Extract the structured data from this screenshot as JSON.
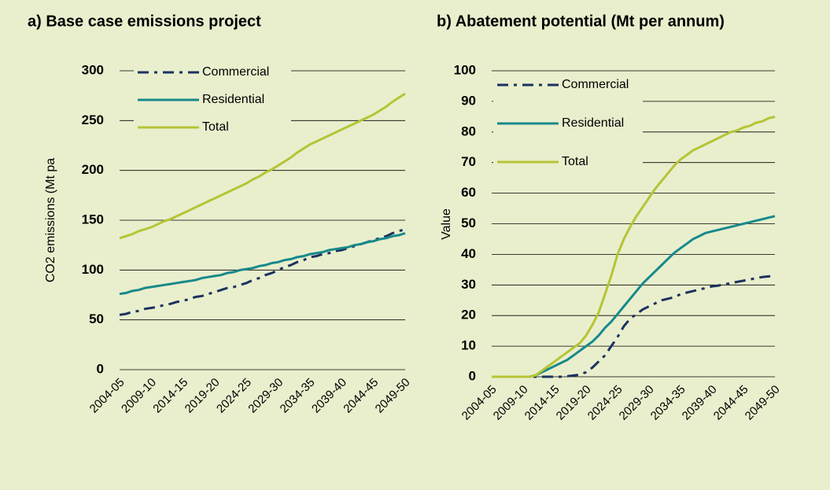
{
  "chart_data": [
    {
      "type": "line",
      "title": "a) Base case emissions project",
      "y_label": "CO2 emissions (Mt pa",
      "categories": [
        "2004-05",
        null,
        null,
        null,
        null,
        "2009-10",
        null,
        null,
        null,
        null,
        "2014-15",
        null,
        null,
        null,
        null,
        "2019-20",
        null,
        null,
        null,
        null,
        "2024-25",
        null,
        null,
        null,
        null,
        "2029-30",
        null,
        null,
        null,
        null,
        "2034-35",
        null,
        null,
        null,
        null,
        "2039-40",
        null,
        null,
        null,
        null,
        "2044-45",
        null,
        null,
        null,
        null,
        "2049-50"
      ],
      "ylim": [
        0,
        300
      ],
      "yticks": [
        0,
        50,
        100,
        150,
        200,
        250,
        300
      ],
      "grid": true,
      "series": [
        {
          "name": "Commercial",
          "color": "#1c3260",
          "style": "dashed",
          "values": [
            55,
            56,
            58,
            59,
            61,
            62,
            63,
            65,
            66,
            68,
            69,
            71,
            73,
            74,
            76,
            78,
            80,
            82,
            83,
            85,
            87,
            90,
            92,
            95,
            97,
            100,
            103,
            105,
            108,
            110,
            113,
            114,
            116,
            117,
            119,
            120,
            122,
            124,
            126,
            128,
            130,
            132,
            134,
            137,
            139,
            141
          ]
        },
        {
          "name": "Residential",
          "color": "#17898c",
          "values": [
            76,
            77,
            79,
            80,
            82,
            83,
            84,
            85,
            86,
            87,
            88,
            89,
            90,
            92,
            93,
            94,
            95,
            97,
            98,
            100,
            101,
            102,
            104,
            105,
            107,
            108,
            110,
            111,
            113,
            114,
            116,
            117,
            118,
            120,
            121,
            122,
            123,
            125,
            126,
            128,
            129,
            131,
            132,
            134,
            135,
            137
          ]
        },
        {
          "name": "Total",
          "color": "#b6c435",
          "values": [
            132,
            134,
            136,
            139,
            141,
            143,
            146,
            149,
            151,
            154,
            157,
            160,
            163,
            166,
            169,
            172,
            175,
            178,
            181,
            184,
            187,
            191,
            194,
            198,
            201,
            205,
            209,
            213,
            218,
            222,
            226,
            229,
            232,
            235,
            238,
            241,
            244,
            247,
            250,
            253,
            256,
            260,
            264,
            269,
            273,
            277
          ]
        }
      ]
    },
    {
      "type": "line",
      "title": "b) Abatement potential (Mt per annum)",
      "y_label": "Value",
      "categories": [
        "2004-05",
        null,
        null,
        null,
        null,
        "2009-10",
        null,
        null,
        null,
        null,
        "2014-15",
        null,
        null,
        null,
        null,
        "2019-20",
        null,
        null,
        null,
        null,
        "2024-25",
        null,
        null,
        null,
        null,
        "2029-30",
        null,
        null,
        null,
        null,
        "2034-35",
        null,
        null,
        null,
        null,
        "2039-40",
        null,
        null,
        null,
        null,
        "2044-45",
        null,
        null,
        null,
        null,
        "2049-50"
      ],
      "ylim": [
        0,
        100
      ],
      "yticks": [
        0,
        10,
        20,
        30,
        40,
        50,
        60,
        70,
        80,
        90,
        100
      ],
      "grid": true,
      "series": [
        {
          "name": "Commercial",
          "color": "#1c3260",
          "style": "dashed",
          "values": [
            0,
            0,
            0,
            0,
            0,
            0,
            0,
            0,
            0,
            0,
            0,
            0,
            0.2,
            0.4,
            0.7,
            1.5,
            3,
            5,
            7,
            10,
            13,
            16.5,
            19,
            20.5,
            22,
            23,
            24,
            25,
            25.5,
            26,
            27,
            27.5,
            28,
            28.5,
            29,
            29.5,
            29.8,
            30.2,
            30.6,
            31,
            31.4,
            31.8,
            32.2,
            32.6,
            32.8,
            33
          ]
        },
        {
          "name": "Residential",
          "color": "#17898c",
          "values": [
            0,
            0,
            0,
            0,
            0,
            0,
            0,
            0.5,
            1.5,
            2.5,
            3.5,
            4.5,
            5.5,
            7,
            8.5,
            10,
            11.5,
            13.5,
            16,
            18,
            20.5,
            23,
            25.5,
            28,
            30.5,
            32.5,
            34.5,
            36.5,
            38.5,
            40.5,
            42,
            43.5,
            45,
            46,
            47,
            47.5,
            48,
            48.5,
            49,
            49.5,
            50,
            50.5,
            51,
            51.5,
            52,
            52.5
          ]
        },
        {
          "name": "Total",
          "color": "#b6c435",
          "values": [
            0,
            0,
            0,
            0,
            0,
            0,
            0,
            0.5,
            2,
            3.5,
            5,
            6.5,
            8,
            9.5,
            11,
            13.5,
            17,
            21,
            27,
            33,
            40,
            45,
            49,
            52.5,
            55.5,
            58.5,
            61.5,
            64,
            66.5,
            69,
            71,
            72.5,
            74,
            75,
            76,
            77,
            78,
            79,
            80,
            80.5,
            81.5,
            82,
            83,
            83.5,
            84.5,
            85
          ]
        }
      ]
    }
  ]
}
